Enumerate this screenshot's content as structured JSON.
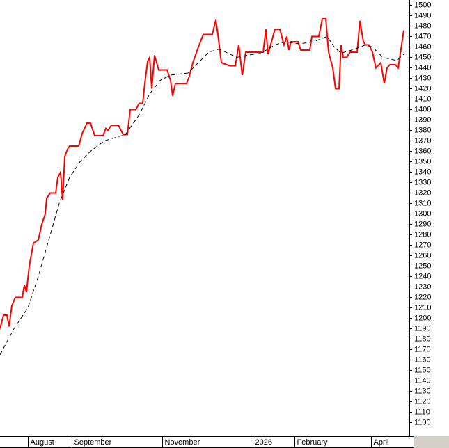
{
  "chart_data": {
    "type": "line",
    "xlim": [
      0,
      588
    ],
    "xticks": [
      {
        "value": 40,
        "label": "August"
      },
      {
        "value": 103,
        "label": "September"
      },
      {
        "value": 233,
        "label": "November"
      },
      {
        "value": 363,
        "label": "2026"
      },
      {
        "value": 423,
        "label": "February"
      },
      {
        "value": 533,
        "label": "April"
      }
    ],
    "ylim": [
      1087,
      1505
    ],
    "yticks": [
      1100,
      1110,
      1120,
      1130,
      1140,
      1150,
      1160,
      1170,
      1180,
      1190,
      1200,
      1210,
      1220,
      1230,
      1240,
      1250,
      1260,
      1270,
      1280,
      1290,
      1300,
      1310,
      1320,
      1330,
      1340,
      1350,
      1360,
      1370,
      1380,
      1390,
      1400,
      1410,
      1420,
      1430,
      1440,
      1450,
      1460,
      1470,
      1480,
      1490,
      1500
    ],
    "series": [
      {
        "color": "#ff0000",
        "dashed": false,
        "x": [
          0,
          5,
          10,
          13,
          17,
          22,
          32,
          35,
          38,
          42,
          48,
          55,
          60,
          65,
          67,
          72,
          80,
          83,
          87,
          90,
          93,
          97,
          100,
          113,
          118,
          125,
          130,
          136,
          148,
          152,
          155,
          160,
          170,
          177,
          183,
          187,
          195,
          200,
          205,
          208,
          212,
          215,
          218,
          222,
          228,
          240,
          245,
          248,
          252,
          268,
          272,
          277,
          285,
          292,
          305,
          310,
          313,
          318,
          330,
          338,
          343,
          348,
          353,
          378,
          382,
          385,
          390,
          395,
          402,
          408,
          412,
          415,
          418,
          428,
          432,
          445,
          448,
          458,
          463,
          468,
          472,
          478,
          482,
          487,
          490,
          493,
          498,
          503,
          513,
          517,
          522,
          525,
          530,
          535,
          540,
          547,
          552,
          556,
          560,
          568,
          572,
          576,
          580
        ],
        "values": [
          1190,
          1203,
          1203,
          1192,
          1212,
          1220,
          1220,
          1232,
          1225,
          1250,
          1272,
          1275,
          1290,
          1300,
          1315,
          1320,
          1320,
          1335,
          1340,
          1313,
          1355,
          1362,
          1365,
          1365,
          1377,
          1387,
          1387,
          1375,
          1375,
          1382,
          1380,
          1385,
          1385,
          1376,
          1376,
          1400,
          1400,
          1406,
          1406,
          1425,
          1446,
          1450,
          1420,
          1452,
          1438,
          1438,
          1428,
          1413,
          1425,
          1425,
          1432,
          1445,
          1460,
          1472,
          1472,
          1486,
          1472,
          1445,
          1442,
          1442,
          1462,
          1433,
          1455,
          1455,
          1477,
          1453,
          1465,
          1477,
          1477,
          1462,
          1470,
          1457,
          1465,
          1465,
          1457,
          1457,
          1470,
          1470,
          1487,
          1487,
          1455,
          1440,
          1420,
          1420,
          1462,
          1450,
          1450,
          1455,
          1455,
          1485,
          1465,
          1462,
          1462,
          1455,
          1440,
          1445,
          1425,
          1440,
          1443,
          1443,
          1440,
          1458,
          1476
        ]
      },
      {
        "color": "#000000",
        "dashed": true,
        "x": [
          0,
          20,
          40,
          55,
          70,
          85,
          100,
          115,
          130,
          150,
          180,
          200,
          215,
          230,
          245,
          270,
          285,
          300,
          315,
          340,
          355,
          375,
          395,
          410,
          430,
          450,
          470,
          480,
          490,
          510,
          525,
          535,
          550,
          570,
          580
        ],
        "values": [
          1165,
          1190,
          1210,
          1240,
          1275,
          1310,
          1335,
          1350,
          1360,
          1370,
          1376,
          1395,
          1415,
          1428,
          1433,
          1435,
          1445,
          1455,
          1458,
          1450,
          1452,
          1454,
          1462,
          1465,
          1463,
          1465,
          1470,
          1460,
          1454,
          1458,
          1462,
          1460,
          1450,
          1447,
          1453
        ]
      }
    ]
  }
}
